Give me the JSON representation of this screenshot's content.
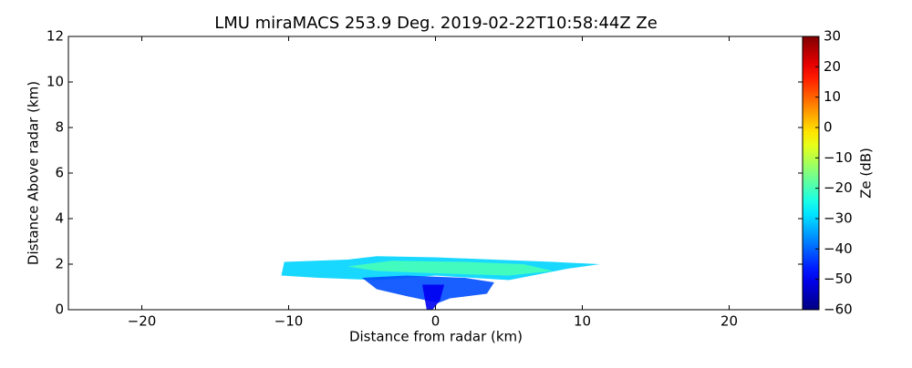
{
  "chart_data": {
    "type": "rhi",
    "title": "LMU miraMACS 253.9 Deg. 2019-02-22T10:58:44Z  Ze",
    "x_label": "Distance from radar (km)",
    "y_label": "Distance Above radar  (km)",
    "colorbar_label": "Ze (dB)",
    "colormap": "jet",
    "xlim": [
      -25,
      25
    ],
    "xticks": [
      {
        "value": -20,
        "label": "−20"
      },
      {
        "value": -10,
        "label": "−10"
      },
      0,
      10,
      20
    ],
    "ylim": [
      0,
      12
    ],
    "yticks": [
      0,
      2,
      4,
      6,
      8,
      10,
      12
    ],
    "clim": [
      -60,
      30
    ],
    "cticks": [
      {
        "value": -60,
        "label": "−60"
      },
      {
        "value": -50,
        "label": "−50"
      },
      {
        "value": -40,
        "label": "−40"
      },
      {
        "value": -30,
        "label": "−30"
      },
      {
        "value": -20,
        "label": "−20"
      },
      {
        "value": -10,
        "label": "−10"
      },
      0,
      10,
      20,
      30
    ],
    "regions": [
      {
        "ze": -30,
        "points": [
          [
            -10.5,
            1.5
          ],
          [
            -10.3,
            2.1
          ],
          [
            -6,
            2.2
          ],
          [
            -4,
            2.35
          ],
          [
            0,
            2.3
          ],
          [
            4,
            2.2
          ],
          [
            8,
            2.1
          ],
          [
            11.2,
            2.0
          ],
          [
            9,
            1.8
          ],
          [
            5,
            1.3
          ],
          [
            0,
            1.5
          ],
          [
            -4,
            1.3
          ],
          [
            -8,
            1.4
          ]
        ]
      },
      {
        "ze": -20,
        "points": [
          [
            -6,
            1.9
          ],
          [
            -3,
            2.15
          ],
          [
            2,
            2.1
          ],
          [
            6,
            2.0
          ],
          [
            8,
            1.7
          ],
          [
            5,
            1.5
          ],
          [
            0,
            1.6
          ],
          [
            -4,
            1.7
          ]
        ]
      },
      {
        "ze": -42,
        "points": [
          [
            -5,
            1.4
          ],
          [
            -2,
            1.5
          ],
          [
            2,
            1.4
          ],
          [
            4,
            1.2
          ],
          [
            3.5,
            0.7
          ],
          [
            1,
            0.5
          ],
          [
            0.2,
            0.3
          ],
          [
            -2,
            0.6
          ],
          [
            -4,
            0.9
          ]
        ]
      },
      {
        "ze": -50,
        "points": [
          [
            -0.9,
            1.1
          ],
          [
            0.6,
            1.1
          ],
          [
            0.3,
            0.4
          ],
          [
            -0.2,
            0
          ],
          [
            -0.6,
            0
          ]
        ]
      }
    ]
  }
}
